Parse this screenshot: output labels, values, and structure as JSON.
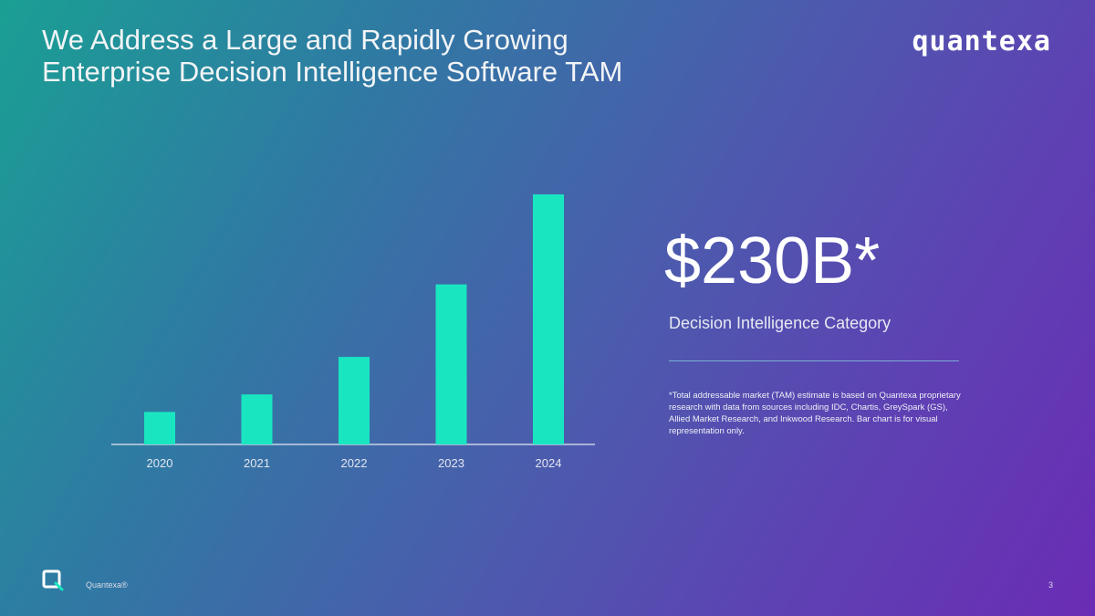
{
  "slide": {
    "title_lines": [
      "We Address a Large and Rapidly Growing",
      "Enterprise Decision Intelligence Software TAM"
    ],
    "logo_text": "quantexa",
    "tam_value": "$230B*",
    "tam_category": "Decision Intelligence Category",
    "footnote": "*Total addressable market (TAM) estimate is based on Quantexa proprietary research with data from sources including IDC, Chartis, GreySpark (GS), Allied Market Research, and Inkwood Research. Bar chart is for visual representation only.",
    "footer_label": "Quantexa®",
    "page_number": "3"
  },
  "colors": {
    "bar": "#19e6c1",
    "axis": "#c9d2e6",
    "tick_label": "#e3e6f0",
    "gradient_start": "#1a9f94",
    "gradient_end": "#6a2cb4"
  },
  "chart_data": {
    "type": "bar",
    "categories": [
      "2020",
      "2021",
      "2022",
      "2023",
      "2024"
    ],
    "values": [
      13,
      20,
      35,
      64,
      100
    ],
    "title": "",
    "xlabel": "",
    "ylabel": "",
    "ylim": [
      0,
      100
    ],
    "grid": false,
    "legend": "none"
  }
}
